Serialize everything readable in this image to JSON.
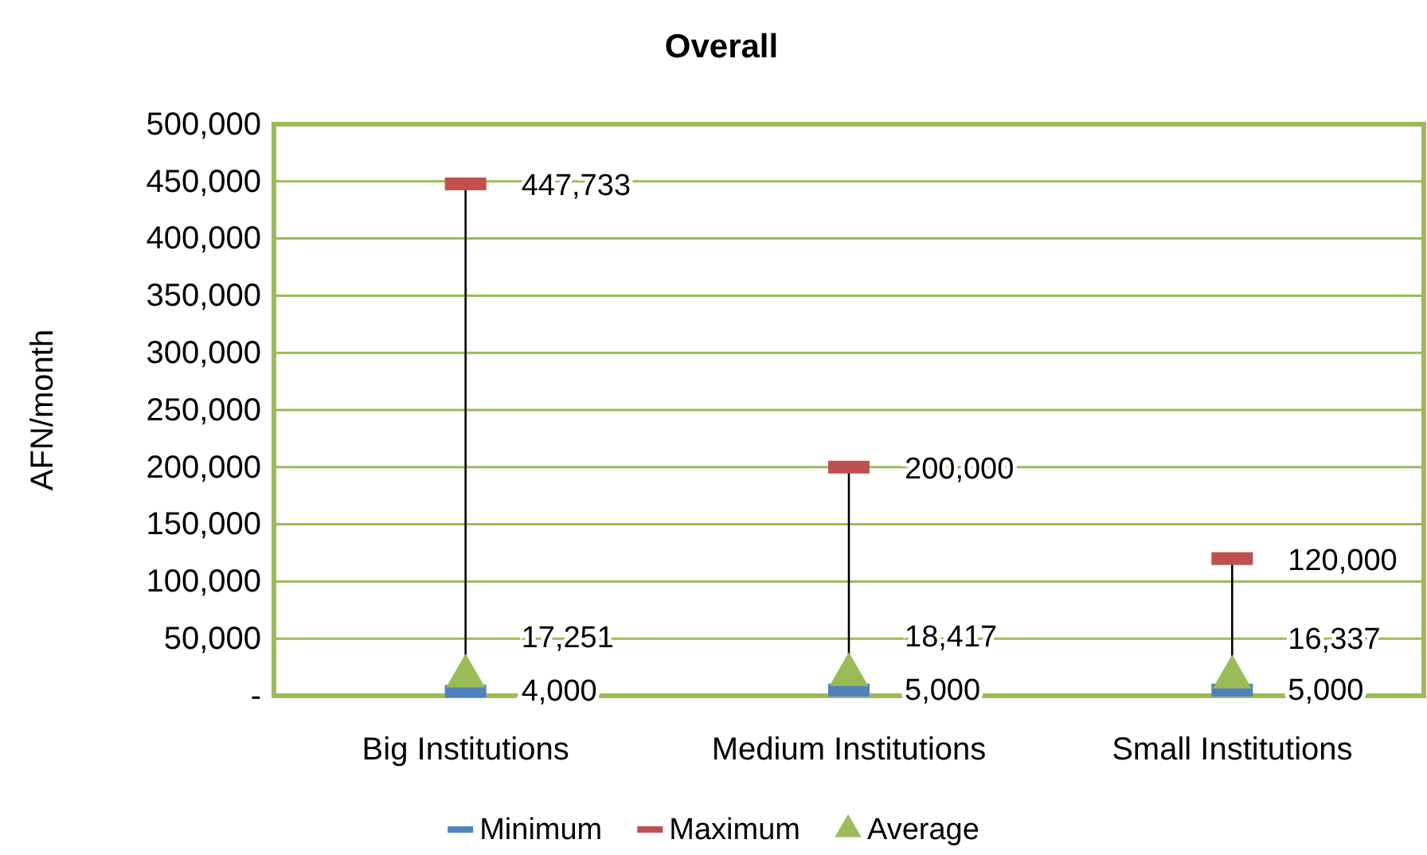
{
  "chart_data": {
    "type": "scatter",
    "title": "Overall",
    "ylabel": "AFN/month",
    "categories": [
      "Big Institutions",
      "Medium Institutions",
      "Small Institutions"
    ],
    "series": [
      {
        "name": "Minimum",
        "color": "#4f81bd",
        "values": [
          4000,
          5000,
          5000
        ],
        "value_labels": [
          "4,000",
          "5,000",
          "5,000"
        ]
      },
      {
        "name": "Maximum",
        "color": "#c0504d",
        "values": [
          447733,
          200000,
          120000
        ],
        "value_labels": [
          "447,733",
          "200,000",
          "120,000"
        ]
      },
      {
        "name": "Average",
        "color": "#9bbb59",
        "values": [
          17251,
          18417,
          16337
        ],
        "value_labels": [
          "17,251",
          "18,417",
          "16,337"
        ],
        "marker": "triangle"
      }
    ],
    "ylim": [
      0,
      500000
    ],
    "yticks": [
      {
        "value": 0,
        "label": "-"
      },
      {
        "value": 50000,
        "label": "50,000"
      },
      {
        "value": 100000,
        "label": "100,000"
      },
      {
        "value": 150000,
        "label": "150,000"
      },
      {
        "value": 200000,
        "label": "200,000"
      },
      {
        "value": 250000,
        "label": "250,000"
      },
      {
        "value": 300000,
        "label": "300,000"
      },
      {
        "value": 350000,
        "label": "350,000"
      },
      {
        "value": 400000,
        "label": "400,000"
      },
      {
        "value": 450000,
        "label": "450,000"
      },
      {
        "value": 500000,
        "label": "500,000"
      }
    ],
    "grid": "y",
    "legend": "bottom"
  }
}
